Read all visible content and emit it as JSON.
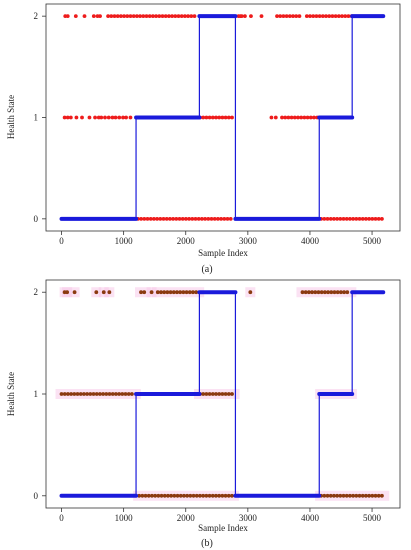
{
  "chart_data": [
    {
      "type": "scatter",
      "caption": "(a)",
      "xlabel": "Sample Index",
      "ylabel": "Health State",
      "xlim": [
        -250,
        5450
      ],
      "ylim": [
        -0.12,
        2.12
      ],
      "xticks": [
        0,
        1000,
        2000,
        3000,
        4000,
        5000
      ],
      "yticks": [
        0,
        1,
        2
      ],
      "grid": false,
      "legend": "none",
      "truth_color": "#1a1adb",
      "pred_color": "#ee1c1c",
      "ground_truth_steps": [
        {
          "x_start": 0,
          "x_end": 1200,
          "y": 0
        },
        {
          "x_start": 1200,
          "x_end": 2220,
          "y": 1
        },
        {
          "x_start": 2220,
          "x_end": 2800,
          "y": 2
        },
        {
          "x_start": 2800,
          "x_end": 4150,
          "y": 0
        },
        {
          "x_start": 4150,
          "x_end": 4680,
          "y": 1
        },
        {
          "x_start": 4680,
          "x_end": 5180,
          "y": 2
        }
      ],
      "predictions": {
        "y2": {
          "points": [
            60,
            100,
            230,
            370,
            520,
            580,
            620
          ],
          "ranges": [
            [
              750,
              2180
            ],
            [
              2850,
              2980
            ],
            [
              3470,
              3860
            ],
            [
              3950,
              4680
            ]
          ],
          "extra_points": [
            2880,
            3050,
            3220
          ]
        },
        "y1": {
          "points": [
            50,
            100,
            150,
            240,
            330,
            450,
            540,
            600,
            640,
            700,
            760,
            820,
            870,
            930,
            990,
            1040,
            1110
          ],
          "ranges": [
            [
              2230,
              2780
            ],
            [
              3550,
              4120
            ]
          ],
          "extra_points": [
            3380,
            3450
          ]
        },
        "y0": {
          "points": [],
          "ranges": [
            [
              1230,
              2760
            ],
            [
              4180,
              5180
            ]
          ],
          "extra_points": []
        }
      }
    },
    {
      "type": "scatter",
      "caption": "(b)",
      "xlabel": "Sample Index",
      "ylabel": "Health State",
      "xlim": [
        -250,
        5450
      ],
      "ylim": [
        -0.12,
        2.12
      ],
      "xticks": [
        0,
        1000,
        2000,
        3000,
        4000,
        5000
      ],
      "yticks": [
        0,
        1,
        2
      ],
      "grid": false,
      "legend": "none",
      "truth_color": "#1a1adb",
      "pred_color": "#8b3a10",
      "halo_color": "#f7c6e8",
      "ground_truth_steps": [
        {
          "x_start": 0,
          "x_end": 1200,
          "y": 0
        },
        {
          "x_start": 1200,
          "x_end": 2220,
          "y": 1
        },
        {
          "x_start": 2220,
          "x_end": 2800,
          "y": 2
        },
        {
          "x_start": 2800,
          "x_end": 4150,
          "y": 0
        },
        {
          "x_start": 4150,
          "x_end": 4680,
          "y": 1
        },
        {
          "x_start": 4680,
          "x_end": 5180,
          "y": 2
        }
      ],
      "predictions": {
        "y2": {
          "points": [
            50,
            90,
            210,
            560,
            680,
            770
          ],
          "ranges": [
            [
              1280,
              1340
            ],
            [
              1550,
              2200
            ],
            [
              3880,
              4650
            ]
          ],
          "extra_points": [
            1450,
            3040
          ]
        },
        "y1": {
          "points": [],
          "ranges": [
            [
              0,
              1180
            ],
            [
              2230,
              2770
            ],
            [
              4180,
              4660
            ]
          ],
          "extra_points": []
        },
        "y0": {
          "points": [],
          "ranges": [
            [
              1250,
              2760
            ],
            [
              4180,
              5180
            ]
          ],
          "extra_points": []
        }
      }
    }
  ]
}
